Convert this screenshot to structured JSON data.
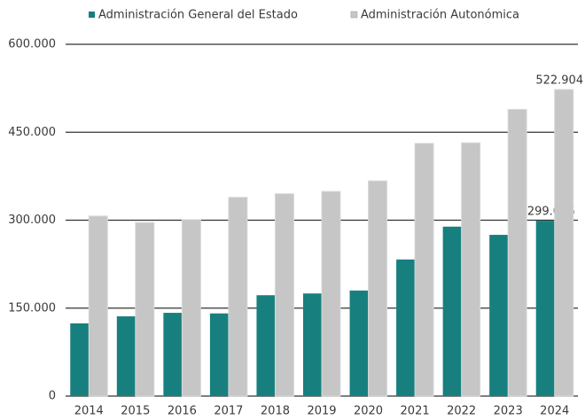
{
  "chart_data": {
    "type": "bar",
    "categories": [
      "2014",
      "2015",
      "2016",
      "2017",
      "2018",
      "2019",
      "2020",
      "2021",
      "2022",
      "2023",
      "2024"
    ],
    "series": [
      {
        "name": "Administración General del Estado",
        "color": "#17807e",
        "values": [
          124000,
          136000,
          142000,
          141000,
          172000,
          175000,
          180000,
          233000,
          289000,
          275000,
          299076
        ],
        "value_labels": [
          null,
          null,
          null,
          null,
          null,
          null,
          null,
          null,
          null,
          null,
          "299.076"
        ]
      },
      {
        "name": "Administración Autonómica",
        "color": "#c6c6c6",
        "values": [
          307000,
          296000,
          301000,
          339000,
          345000,
          349000,
          367000,
          431000,
          432000,
          489000,
          522904
        ],
        "value_labels": [
          null,
          null,
          null,
          null,
          null,
          null,
          null,
          null,
          null,
          null,
          "522.904"
        ]
      }
    ],
    "ylim": [
      0,
      600000
    ],
    "yticks": [
      0,
      {
        "value": 150000,
        "label": "150.000"
      },
      {
        "value": 300000,
        "label": "300.000"
      },
      {
        "value": 450000,
        "label": "450.000"
      },
      {
        "value": 600000,
        "label": "600.000"
      }
    ],
    "grid": true,
    "legend": "top"
  }
}
